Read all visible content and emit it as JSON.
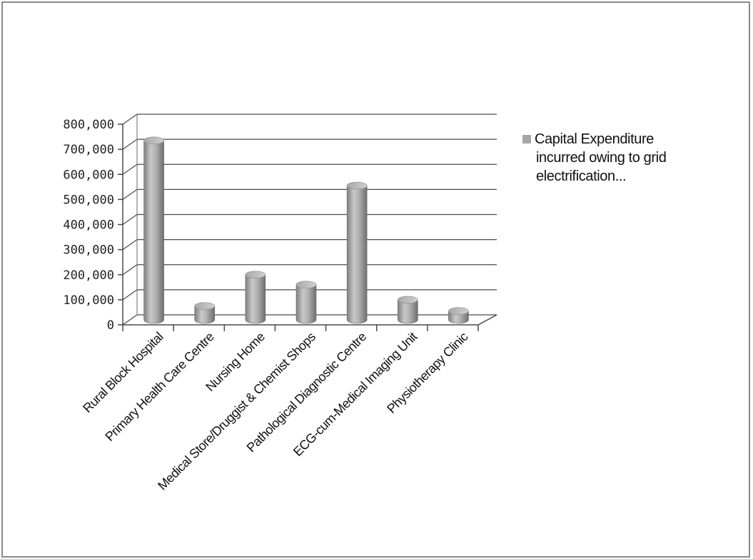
{
  "chart_data": {
    "type": "bar",
    "style": "3d-cylinder",
    "categories": [
      "Rural Block Hospital",
      "Primary Health Care Centre",
      "Nursing Home",
      "Medical Store/Druggist & Chemist Shops",
      "Pathological Diagnostic Centre",
      "ECG-cum-Medical Imaging Unit",
      "Physiotherapy Clinic"
    ],
    "series": [
      {
        "name": "Capital Expenditure incurred owing to grid electrification...",
        "legend_lines": [
          "Capital Expenditure",
          "incurred owing to grid",
          "electrification..."
        ],
        "values": [
          715000,
          55000,
          180000,
          140000,
          535000,
          80000,
          35000
        ],
        "color": "#a6a6a6"
      }
    ],
    "y_ticks": [
      "0",
      "100,000",
      "200,000",
      "300,000",
      "400,000",
      "500,000",
      "600,000",
      "700,000",
      "800,000"
    ],
    "ylim": [
      0,
      800000
    ],
    "title": "",
    "xlabel": "",
    "ylabel": "",
    "grid": true,
    "legend_position": "right"
  }
}
